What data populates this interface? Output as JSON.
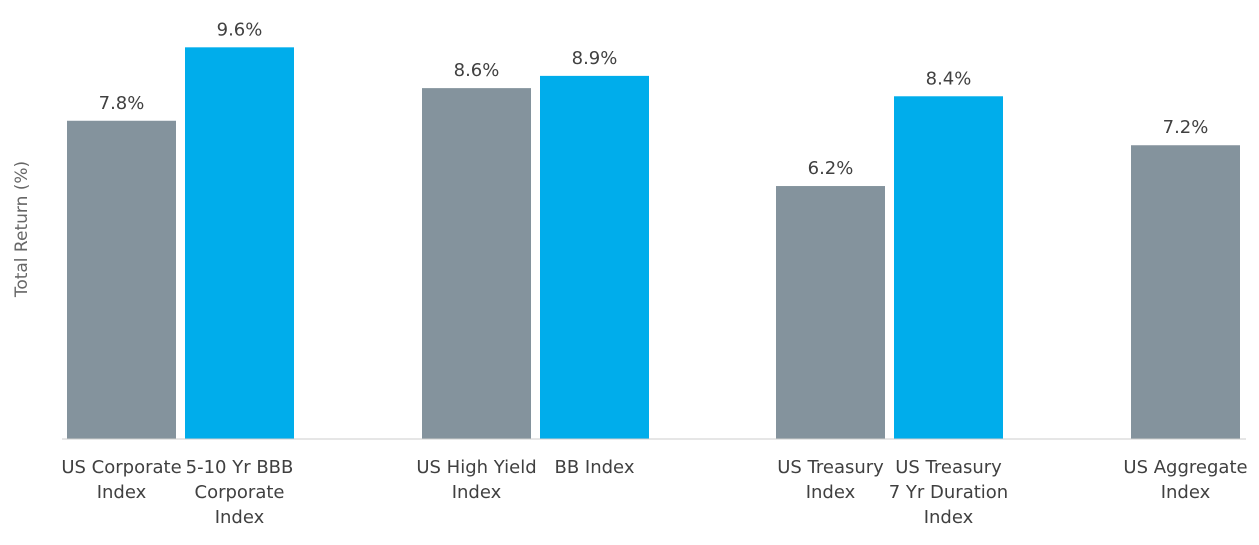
{
  "chart_data": {
    "type": "bar",
    "ylabel": "Total Return (%)",
    "ylim": [
      0,
      10
    ],
    "grid": false,
    "legend": "none",
    "bars": [
      {
        "lines": [
          "US Corporate",
          "Index"
        ],
        "value": 7.8,
        "label": "7.8%",
        "color": "#84939d"
      },
      {
        "lines": [
          "5-10 Yr BBB",
          "Corporate",
          "Index"
        ],
        "value": 9.6,
        "label": "9.6%",
        "color": "#00adeb"
      },
      {
        "lines": [
          "US High Yield",
          "Index"
        ],
        "value": 8.6,
        "label": "8.6%",
        "color": "#84939d"
      },
      {
        "lines": [
          "BB Index"
        ],
        "value": 8.9,
        "label": "8.9%",
        "color": "#00adeb"
      },
      {
        "lines": [
          "US Treasury",
          "Index"
        ],
        "value": 6.2,
        "label": "6.2%",
        "color": "#84939d"
      },
      {
        "lines": [
          "US Treasury",
          "7 Yr Duration",
          "Index"
        ],
        "value": 8.4,
        "label": "8.4%",
        "color": "#00adeb"
      },
      {
        "lines": [
          "US Aggregate",
          "Index"
        ],
        "value": 7.2,
        "label": "7.2%",
        "color": "#84939d"
      }
    ]
  },
  "colors": {
    "benchmark": "#84939d",
    "highlight": "#00adeb",
    "axis": "#cccccc"
  }
}
